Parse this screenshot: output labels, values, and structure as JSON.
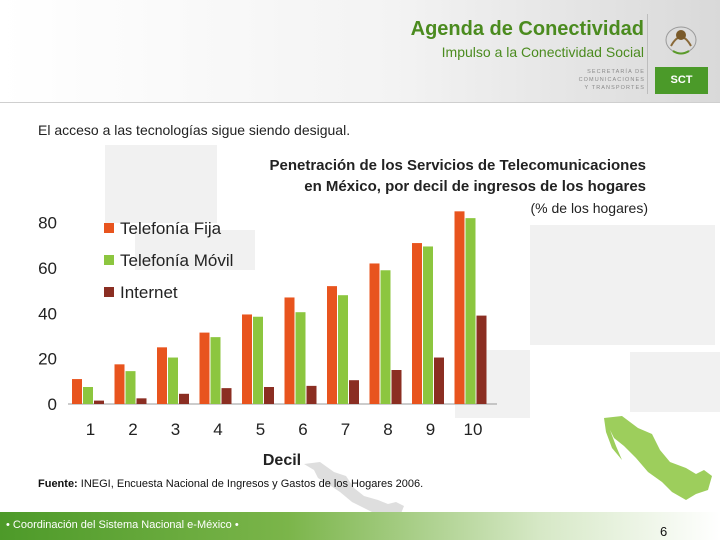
{
  "header": {
    "title": "Agenda de Conectividad",
    "subtitle": "Impulso a la Conectividad Social",
    "ministry_lines": "SECRETARÍA DE\nCOMUNICACIONES\nY TRANSPORTES",
    "badge": "SCT"
  },
  "intro": "El acceso a las tecnologías sigue siendo desigual.",
  "footer": {
    "source_label": "Fuente:",
    "source_text": " INEGI, Encuesta Nacional de Ingresos y Gastos de los Hogares 2006.",
    "tagline": "• Coordinación del Sistema Nacional e-México •",
    "page_number": "6"
  },
  "colors": {
    "brand_green": "#4b8b1f",
    "fija": "#e8541e",
    "movil": "#8cc63f",
    "internet": "#8b2e22"
  },
  "chart_data": {
    "type": "bar",
    "title_line1": "Penetración de los Servicios de Telecomunicaciones",
    "title_line2": "en México, por decil de ingresos de los hogares",
    "subtitle": "(% de los hogares)",
    "xlabel": "Decil",
    "ylabel": "",
    "categories": [
      "1",
      "2",
      "3",
      "4",
      "5",
      "6",
      "7",
      "8",
      "9",
      "10"
    ],
    "ylim": [
      0,
      90
    ],
    "yticks": [
      0,
      20,
      40,
      60,
      80
    ],
    "legend_position": "top-left",
    "series": [
      {
        "name": "Telefonía Fija",
        "color": "#e8541e",
        "values": [
          11,
          17.5,
          25,
          31.5,
          39.5,
          47,
          52,
          62,
          71,
          85
        ]
      },
      {
        "name": "Telefonía Móvil",
        "color": "#8cc63f",
        "values": [
          7.5,
          14.5,
          20.5,
          29.5,
          38.5,
          40.5,
          48,
          59,
          69.5,
          82
        ]
      },
      {
        "name": "Internet",
        "color": "#8b2e22",
        "values": [
          1.5,
          2.5,
          4.5,
          7,
          7.5,
          8,
          10.5,
          15,
          20.5,
          39
        ]
      }
    ]
  }
}
